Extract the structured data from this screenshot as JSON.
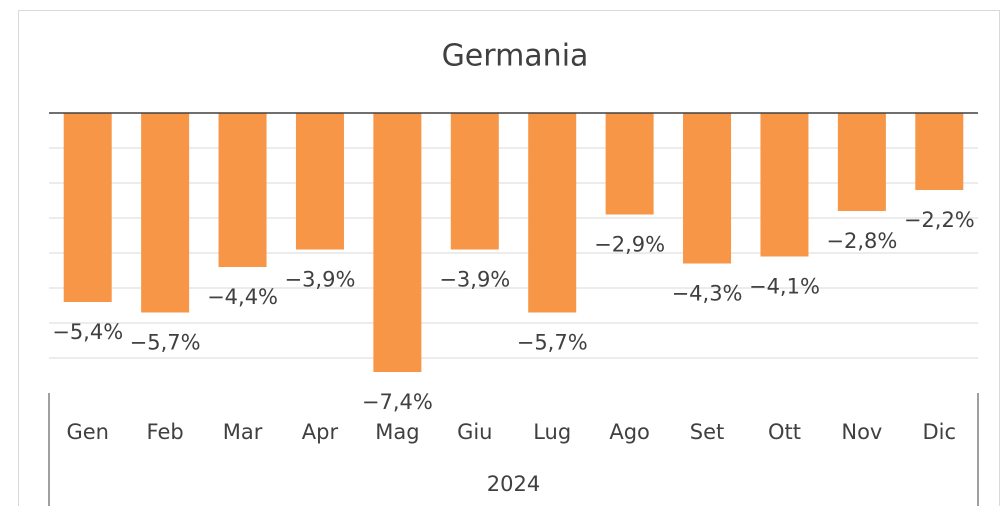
{
  "chart_data": {
    "type": "bar",
    "title": "Germania",
    "categories": [
      "Gen",
      "Feb",
      "Mar",
      "Apr",
      "Mag",
      "Giu",
      "Lug",
      "Ago",
      "Set",
      "Ott",
      "Nov",
      "Dic"
    ],
    "values": [
      -5.4,
      -5.7,
      -4.4,
      -3.9,
      -7.4,
      -3.9,
      -5.7,
      -2.9,
      -4.3,
      -4.1,
      -2.8,
      -2.2
    ],
    "value_labels": [
      "−5,4%",
      "−5,7%",
      "−4,4%",
      "−3,9%",
      "−7,4%",
      "−3,9%",
      "−5,7%",
      "−2,9%",
      "−4,3%",
      "−4,1%",
      "−2,8%",
      "−2,2%"
    ],
    "x_group_label": "2024",
    "color": "#f79646",
    "ylim": [
      -8,
      0
    ],
    "yticks": [
      -7,
      -6,
      -5,
      -4,
      -3,
      -2,
      -1,
      0
    ],
    "grid": true
  }
}
